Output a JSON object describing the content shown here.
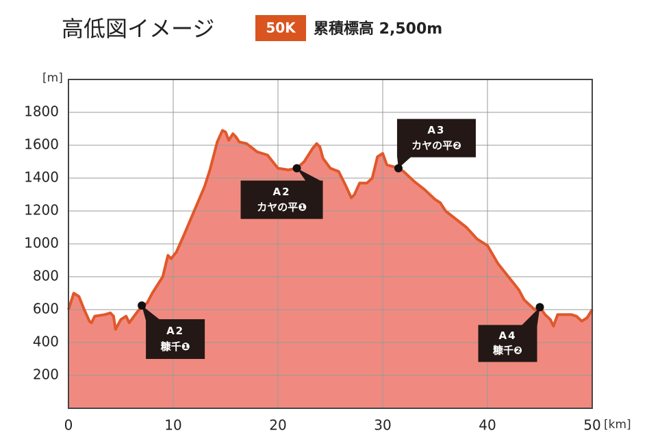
{
  "header": {
    "title": "高低図イメージ",
    "badge": "50K",
    "subtitle": "累積標高 2,500m"
  },
  "chart_data": {
    "type": "area",
    "x": [
      0,
      0.5,
      1,
      1.5,
      2,
      2.2,
      2.5,
      3.5,
      4,
      4.3,
      4.5,
      5,
      5.5,
      5.8,
      6.5,
      7,
      7.5,
      8,
      9,
      9.5,
      9.8,
      10.3,
      11,
      12,
      13,
      13.5,
      14.2,
      14.7,
      15,
      15.3,
      15.7,
      16,
      16.3,
      17,
      18,
      19,
      20,
      21,
      21.8,
      22.5,
      23.3,
      23.7,
      24,
      24.3,
      25,
      25.8,
      26.5,
      27,
      27.3,
      27.8,
      28.5,
      29,
      29.5,
      30,
      30.4,
      31,
      31.5,
      32,
      33,
      34,
      35,
      35.5,
      36,
      37,
      38,
      39,
      40,
      41,
      42,
      42.5,
      43,
      43.5,
      44,
      44.5,
      45,
      45.5,
      46,
      46.3,
      46.7,
      48,
      48.5,
      49,
      49.5,
      50
    ],
    "values": [
      600,
      700,
      680,
      600,
      530,
      520,
      560,
      570,
      580,
      560,
      480,
      540,
      560,
      520,
      580,
      620,
      640,
      700,
      800,
      930,
      910,
      950,
      1050,
      1200,
      1350,
      1450,
      1620,
      1690,
      1680,
      1630,
      1670,
      1650,
      1620,
      1610,
      1560,
      1540,
      1460,
      1450,
      1460,
      1500,
      1580,
      1610,
      1590,
      1520,
      1460,
      1440,
      1350,
      1280,
      1300,
      1370,
      1370,
      1400,
      1530,
      1550,
      1480,
      1470,
      1460,
      1440,
      1380,
      1330,
      1270,
      1250,
      1200,
      1150,
      1100,
      1030,
      990,
      880,
      800,
      760,
      720,
      660,
      630,
      600,
      615,
      570,
      540,
      500,
      570,
      570,
      560,
      530,
      550,
      600
    ],
    "color": "#e0582a",
    "fill": "#f08a80",
    "xlim": [
      0,
      50
    ],
    "xticks": [
      0,
      10,
      20,
      30,
      40,
      50
    ],
    "ylim": [
      0,
      2000
    ],
    "yticks": [
      200,
      400,
      600,
      800,
      1000,
      1200,
      1400,
      1600,
      1800
    ],
    "grid": true,
    "ylabel": "[m]",
    "xlabel": "[km]",
    "annotations": [
      {
        "x": 7,
        "y": 625,
        "label": [
          "A2",
          "糠千❶"
        ]
      },
      {
        "x": 21.8,
        "y": 1460,
        "label": [
          "A2",
          "カヤの平❶"
        ]
      },
      {
        "x": 31.5,
        "y": 1460,
        "label": [
          "A3",
          "カヤの平❷"
        ]
      },
      {
        "x": 45,
        "y": 615,
        "label": [
          "A4",
          "糠千❷"
        ]
      }
    ]
  }
}
